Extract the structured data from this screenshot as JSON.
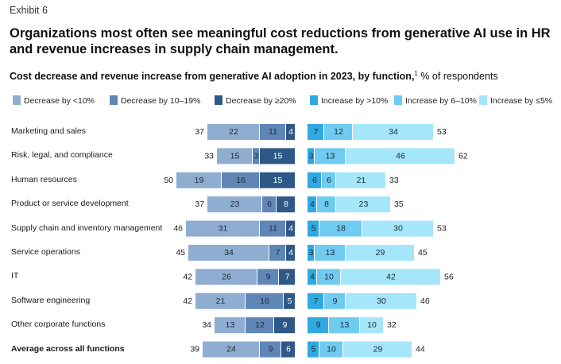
{
  "header": {
    "exhibit": "Exhibit 6",
    "title": "Organizations most often see meaningful cost reductions from generative AI use in HR and revenue increases in supply chain management.",
    "subtitle_bold": "Cost decrease and revenue increase from generative AI adoption in 2023, by function,",
    "subtitle_footnote": "1",
    "subtitle_rest": " % of respondents"
  },
  "colors": {
    "dec_lt10": "#8fadd0",
    "dec_10_19": "#5f86b7",
    "dec_ge20": "#2d5888",
    "inc_gt10": "#30a8e0",
    "inc_6_10": "#6fcbf0",
    "inc_le5": "#a6e6fa",
    "segment_text": "#1a2a3a"
  },
  "chart_data": {
    "type": "bar",
    "orientation": "horizontal-diverging",
    "title": "Cost decrease and revenue increase from generative AI adoption in 2023, by function",
    "unit": "% of respondents",
    "categories": [
      "Marketing and sales",
      "Risk, legal, and compliance",
      "Human resources",
      "Product or service development",
      "Supply chain and inventory management",
      "Service operations",
      "IT",
      "Software engineering",
      "Other corporate functions",
      "Average across all functions"
    ],
    "bold_categories": [
      "Average across all functions"
    ],
    "decrease_series": [
      {
        "name": "Decrease by <10%",
        "color_key": "dec_lt10",
        "values": [
          22,
          15,
          19,
          23,
          31,
          34,
          26,
          21,
          13,
          24
        ]
      },
      {
        "name": "Decrease by 10–19%",
        "color_key": "dec_10_19",
        "values": [
          11,
          3,
          16,
          6,
          11,
          7,
          9,
          16,
          12,
          9
        ]
      },
      {
        "name": "Decrease by ≥20%",
        "color_key": "dec_ge20",
        "values": [
          4,
          15,
          15,
          8,
          4,
          4,
          7,
          5,
          9,
          6
        ]
      }
    ],
    "increase_series": [
      {
        "name": "Increase by >10%",
        "color_key": "inc_gt10",
        "values": [
          7,
          3,
          6,
          4,
          5,
          3,
          4,
          7,
          9,
          5
        ]
      },
      {
        "name": "Increase by 6–10%",
        "color_key": "inc_6_10",
        "values": [
          12,
          13,
          6,
          8,
          18,
          13,
          10,
          9,
          13,
          10
        ]
      },
      {
        "name": "Increase by ≤5%",
        "color_key": "inc_le5",
        "values": [
          34,
          46,
          21,
          23,
          30,
          29,
          42,
          30,
          10,
          29
        ]
      }
    ],
    "decrease_totals": [
      37,
      33,
      50,
      37,
      46,
      45,
      42,
      42,
      34,
      39
    ],
    "increase_totals": [
      53,
      62,
      33,
      35,
      53,
      45,
      56,
      46,
      32,
      44
    ]
  }
}
